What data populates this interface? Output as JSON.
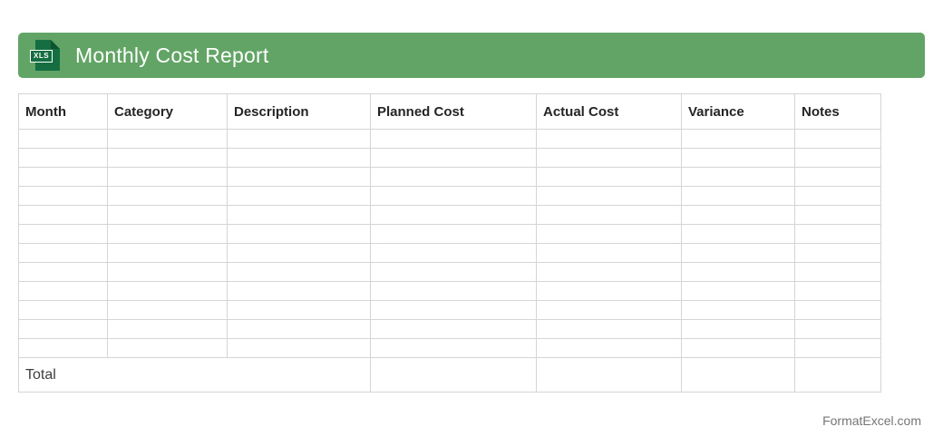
{
  "header": {
    "title": "Monthly Cost Report",
    "icon": "xls-file-icon",
    "icon_label": "XLS",
    "bar_color": "#61a465",
    "icon_color": "#156e41",
    "icon_fold_color": "#0c5231",
    "title_color": "#ffffff"
  },
  "table": {
    "columns": [
      "Month",
      "Category",
      "Description",
      "Planned Cost",
      "Actual Cost",
      "Variance",
      "Notes"
    ],
    "empty_row_count": 12,
    "empty_cell_value": "",
    "total_row": {
      "label": "Total",
      "planned_cost": "",
      "actual_cost": "",
      "variance": "",
      "notes": ""
    },
    "border_color": "#d5d5d5",
    "header_text_color": "#252525",
    "total_text_color": "#3d3d3d"
  },
  "footer": {
    "credit": "FormatExcel.com",
    "color": "#757575"
  }
}
